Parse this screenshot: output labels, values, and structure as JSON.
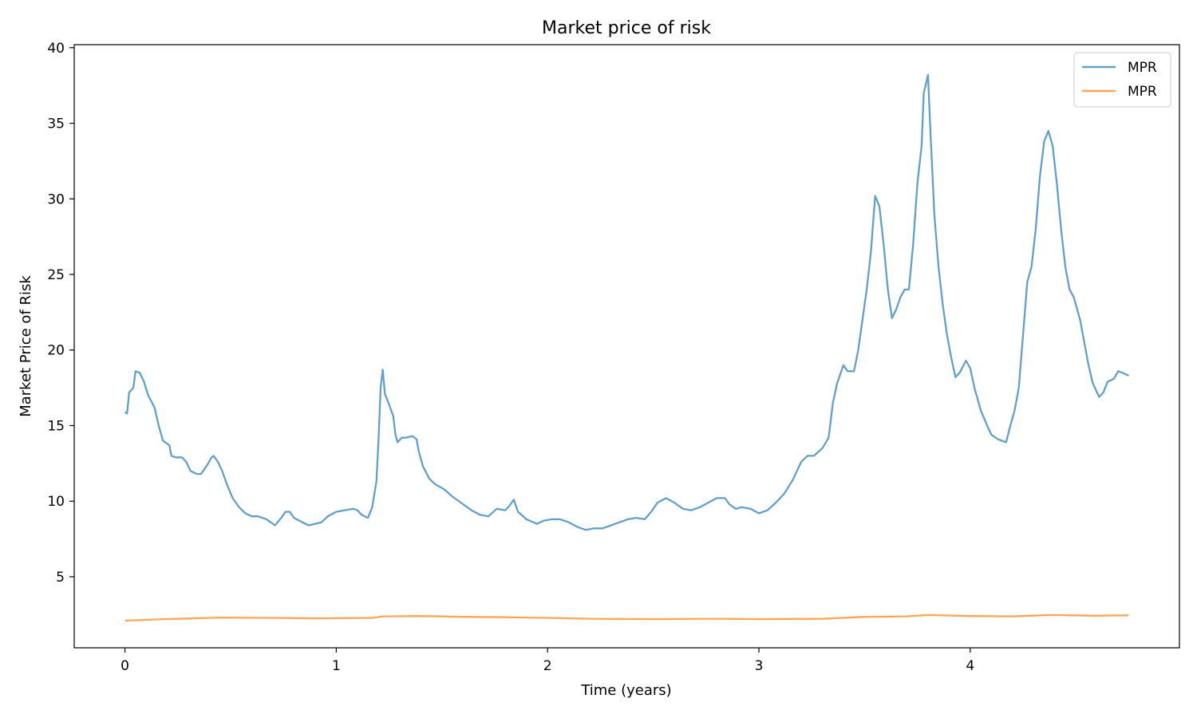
{
  "chart_data": {
    "type": "line",
    "title": "Market price of risk",
    "xlabel": "Time (years)",
    "ylabel": "Market Price of Risk",
    "xlim": [
      -0.24,
      4.99
    ],
    "ylim": [
      0.3,
      40.2
    ],
    "x_ticks": [
      0,
      1,
      2,
      3,
      4
    ],
    "y_ticks": [
      5,
      10,
      15,
      20,
      25,
      30,
      35,
      40
    ],
    "grid": false,
    "legend_position": "top-right",
    "series": [
      {
        "name": "MPR",
        "color": "#1f77b4",
        "opacity": 0.7,
        "points": [
          [
            0.0,
            15.9
          ],
          [
            0.01,
            15.8
          ],
          [
            0.02,
            17.2
          ],
          [
            0.04,
            17.5
          ],
          [
            0.05,
            18.6
          ],
          [
            0.07,
            18.5
          ],
          [
            0.09,
            17.9
          ],
          [
            0.11,
            17.0
          ],
          [
            0.14,
            16.2
          ],
          [
            0.16,
            15.0
          ],
          [
            0.18,
            14.0
          ],
          [
            0.21,
            13.7
          ],
          [
            0.22,
            13.0
          ],
          [
            0.24,
            12.9
          ],
          [
            0.27,
            12.9
          ],
          [
            0.29,
            12.6
          ],
          [
            0.31,
            12.0
          ],
          [
            0.34,
            11.8
          ],
          [
            0.36,
            11.8
          ],
          [
            0.39,
            12.4
          ],
          [
            0.41,
            12.9
          ],
          [
            0.42,
            13.0
          ],
          [
            0.44,
            12.6
          ],
          [
            0.46,
            12.0
          ],
          [
            0.48,
            11.2
          ],
          [
            0.51,
            10.2
          ],
          [
            0.54,
            9.6
          ],
          [
            0.57,
            9.2
          ],
          [
            0.6,
            9.0
          ],
          [
            0.63,
            9.0
          ],
          [
            0.67,
            8.8
          ],
          [
            0.69,
            8.6
          ],
          [
            0.71,
            8.4
          ],
          [
            0.74,
            8.9
          ],
          [
            0.76,
            9.3
          ],
          [
            0.78,
            9.3
          ],
          [
            0.8,
            8.9
          ],
          [
            0.84,
            8.6
          ],
          [
            0.87,
            8.4
          ],
          [
            0.9,
            8.5
          ],
          [
            0.93,
            8.6
          ],
          [
            0.96,
            9.0
          ],
          [
            1.0,
            9.3
          ],
          [
            1.04,
            9.4
          ],
          [
            1.08,
            9.5
          ],
          [
            1.1,
            9.4
          ],
          [
            1.12,
            9.1
          ],
          [
            1.15,
            8.9
          ],
          [
            1.17,
            9.6
          ],
          [
            1.19,
            11.3
          ],
          [
            1.2,
            14.0
          ],
          [
            1.21,
            17.5
          ],
          [
            1.22,
            18.7
          ],
          [
            1.23,
            17.1
          ],
          [
            1.25,
            16.4
          ],
          [
            1.27,
            15.6
          ],
          [
            1.28,
            14.4
          ],
          [
            1.29,
            13.9
          ],
          [
            1.31,
            14.2
          ],
          [
            1.33,
            14.2
          ],
          [
            1.36,
            14.3
          ],
          [
            1.38,
            14.1
          ],
          [
            1.39,
            13.3
          ],
          [
            1.41,
            12.3
          ],
          [
            1.44,
            11.5
          ],
          [
            1.47,
            11.1
          ],
          [
            1.51,
            10.8
          ],
          [
            1.55,
            10.3
          ],
          [
            1.6,
            9.8
          ],
          [
            1.64,
            9.4
          ],
          [
            1.68,
            9.1
          ],
          [
            1.72,
            9.0
          ],
          [
            1.76,
            9.5
          ],
          [
            1.8,
            9.4
          ],
          [
            1.82,
            9.7
          ],
          [
            1.84,
            10.1
          ],
          [
            1.86,
            9.3
          ],
          [
            1.9,
            8.8
          ],
          [
            1.95,
            8.5
          ],
          [
            1.98,
            8.7
          ],
          [
            2.02,
            8.8
          ],
          [
            2.06,
            8.8
          ],
          [
            2.1,
            8.6
          ],
          [
            2.14,
            8.3
          ],
          [
            2.18,
            8.1
          ],
          [
            2.22,
            8.2
          ],
          [
            2.26,
            8.2
          ],
          [
            2.3,
            8.4
          ],
          [
            2.34,
            8.6
          ],
          [
            2.38,
            8.8
          ],
          [
            2.42,
            8.9
          ],
          [
            2.46,
            8.8
          ],
          [
            2.49,
            9.3
          ],
          [
            2.52,
            9.9
          ],
          [
            2.56,
            10.2
          ],
          [
            2.6,
            9.9
          ],
          [
            2.64,
            9.5
          ],
          [
            2.68,
            9.4
          ],
          [
            2.72,
            9.6
          ],
          [
            2.76,
            9.9
          ],
          [
            2.8,
            10.2
          ],
          [
            2.84,
            10.2
          ],
          [
            2.86,
            9.8
          ],
          [
            2.89,
            9.5
          ],
          [
            2.92,
            9.6
          ],
          [
            2.96,
            9.5
          ],
          [
            3.0,
            9.2
          ],
          [
            3.04,
            9.4
          ],
          [
            3.08,
            9.9
          ],
          [
            3.12,
            10.5
          ],
          [
            3.16,
            11.4
          ],
          [
            3.2,
            12.6
          ],
          [
            3.23,
            13.0
          ],
          [
            3.26,
            13.0
          ],
          [
            3.3,
            13.5
          ],
          [
            3.33,
            14.2
          ],
          [
            3.35,
            16.5
          ],
          [
            3.37,
            17.8
          ],
          [
            3.4,
            19.0
          ],
          [
            3.42,
            18.6
          ],
          [
            3.45,
            18.6
          ],
          [
            3.47,
            20.0
          ],
          [
            3.49,
            22.0
          ],
          [
            3.51,
            24.0
          ],
          [
            3.53,
            26.5
          ],
          [
            3.55,
            30.2
          ],
          [
            3.57,
            29.5
          ],
          [
            3.59,
            27.0
          ],
          [
            3.61,
            24.0
          ],
          [
            3.63,
            22.1
          ],
          [
            3.65,
            22.7
          ],
          [
            3.67,
            23.5
          ],
          [
            3.69,
            24.0
          ],
          [
            3.71,
            24.0
          ],
          [
            3.73,
            27.0
          ],
          [
            3.75,
            31.0
          ],
          [
            3.77,
            33.5
          ],
          [
            3.78,
            37.0
          ],
          [
            3.8,
            38.2
          ],
          [
            3.81,
            35.0
          ],
          [
            3.83,
            29.0
          ],
          [
            3.85,
            25.5
          ],
          [
            3.87,
            23.0
          ],
          [
            3.89,
            21.0
          ],
          [
            3.91,
            19.5
          ],
          [
            3.93,
            18.2
          ],
          [
            3.95,
            18.5
          ],
          [
            3.98,
            19.3
          ],
          [
            4.0,
            18.8
          ],
          [
            4.02,
            17.5
          ],
          [
            4.05,
            16.0
          ],
          [
            4.08,
            15.0
          ],
          [
            4.1,
            14.4
          ],
          [
            4.13,
            14.1
          ],
          [
            4.17,
            13.9
          ],
          [
            4.19,
            15.0
          ],
          [
            4.21,
            16.0
          ],
          [
            4.23,
            17.5
          ],
          [
            4.25,
            21.0
          ],
          [
            4.27,
            24.5
          ],
          [
            4.29,
            25.5
          ],
          [
            4.31,
            28.0
          ],
          [
            4.33,
            31.5
          ],
          [
            4.35,
            33.8
          ],
          [
            4.37,
            34.5
          ],
          [
            4.39,
            33.5
          ],
          [
            4.41,
            31.0
          ],
          [
            4.43,
            28.0
          ],
          [
            4.45,
            25.5
          ],
          [
            4.47,
            24.0
          ],
          [
            4.49,
            23.5
          ],
          [
            4.52,
            22.0
          ],
          [
            4.54,
            20.5
          ],
          [
            4.56,
            19.0
          ],
          [
            4.58,
            17.8
          ],
          [
            4.61,
            16.9
          ],
          [
            4.63,
            17.2
          ],
          [
            4.65,
            17.9
          ],
          [
            4.68,
            18.1
          ],
          [
            4.7,
            18.6
          ],
          [
            4.72,
            18.5
          ],
          [
            4.75,
            18.3
          ]
        ]
      },
      {
        "name": "MPR",
        "color": "#ff7f0e",
        "opacity": 0.7,
        "points": [
          [
            0.0,
            2.1
          ],
          [
            0.2,
            2.2
          ],
          [
            0.45,
            2.3
          ],
          [
            0.7,
            2.28
          ],
          [
            0.9,
            2.25
          ],
          [
            1.17,
            2.28
          ],
          [
            1.22,
            2.38
          ],
          [
            1.4,
            2.4
          ],
          [
            1.6,
            2.35
          ],
          [
            1.8,
            2.32
          ],
          [
            2.0,
            2.28
          ],
          [
            2.2,
            2.22
          ],
          [
            2.5,
            2.2
          ],
          [
            2.8,
            2.22
          ],
          [
            3.0,
            2.2
          ],
          [
            3.3,
            2.22
          ],
          [
            3.5,
            2.35
          ],
          [
            3.7,
            2.38
          ],
          [
            3.8,
            2.47
          ],
          [
            4.0,
            2.4
          ],
          [
            4.2,
            2.38
          ],
          [
            4.38,
            2.47
          ],
          [
            4.6,
            2.42
          ],
          [
            4.75,
            2.45
          ]
        ]
      }
    ]
  }
}
